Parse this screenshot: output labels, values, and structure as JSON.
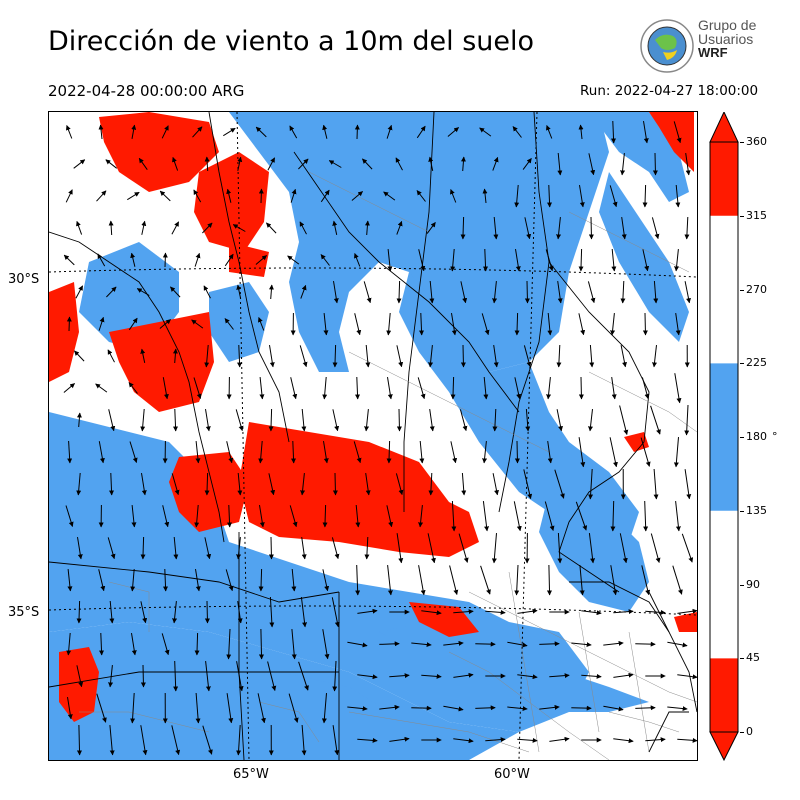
{
  "header": {
    "title": "Dirección de viento a 10m del suelo",
    "valid_time": "2022-04-28 00:00:00 ARG",
    "run_time": "Run: 2022-04-27 18:00:00"
  },
  "logo": {
    "line1": "Grupo de",
    "line2": "Usuarios",
    "line3": "WRF"
  },
  "map": {
    "lat_labels": [
      "30°S",
      "35°S"
    ],
    "lon_labels": [
      "65°W",
      "60°W"
    ],
    "colors": {
      "north": "#ff1a00",
      "south": "#52a3f0",
      "other": "#ffffff",
      "border": "#000000",
      "districts": "#8a8a8a"
    }
  },
  "colorbar": {
    "ticks": [
      "0",
      "45",
      "90",
      "135",
      "180",
      "225",
      "270",
      "315",
      "360"
    ],
    "unit": "°",
    "segments": [
      {
        "from": 0,
        "to": 45,
        "color": "#ff1a00"
      },
      {
        "from": 45,
        "to": 135,
        "color": "#ffffff"
      },
      {
        "from": 135,
        "to": 225,
        "color": "#52a3f0"
      },
      {
        "from": 225,
        "to": 315,
        "color": "#ffffff"
      },
      {
        "from": 315,
        "to": 360,
        "color": "#ff1a00"
      }
    ]
  }
}
